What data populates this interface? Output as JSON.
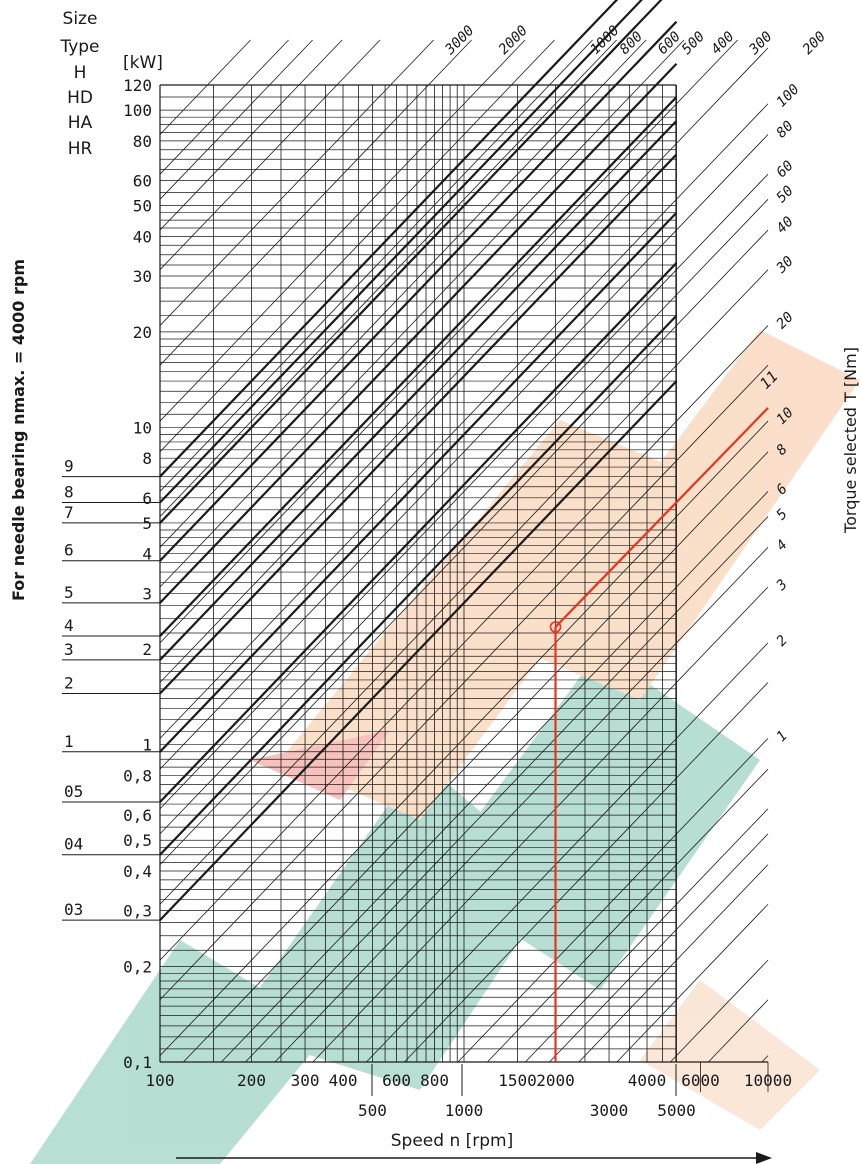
{
  "chart_data": {
    "type": "line",
    "x_scale": "log",
    "y_scale": "log",
    "xlabel": "Speed n [rpm]",
    "ylabel": "[kW]",
    "side_label": "For needle bearing nmax. = 4000 rpm",
    "right_label": "Torque selected T [Nm]",
    "header_labels": [
      "Size",
      "Type",
      "H",
      "HD",
      "HA",
      "HR"
    ],
    "xlim": [
      100,
      10000
    ],
    "ylim": [
      0.1,
      120
    ],
    "x_ticks_row1": [
      {
        "v": 100,
        "t": "100"
      },
      {
        "v": 200,
        "t": "200"
      },
      {
        "v": 300,
        "t": "300"
      },
      {
        "v": 400,
        "t": "400"
      },
      {
        "v": 600,
        "t": "600"
      },
      {
        "v": 800,
        "t": "800"
      },
      {
        "v": 1500,
        "t": "1500"
      },
      {
        "v": 2000,
        "t": "2000"
      },
      {
        "v": 4000,
        "t": "4000"
      },
      {
        "v": 6000,
        "t": "6000"
      },
      {
        "v": 10000,
        "t": "10000"
      }
    ],
    "x_ticks_row2": [
      {
        "v": 500,
        "t": "500"
      },
      {
        "v": 1000,
        "t": "1000"
      },
      {
        "v": 3000,
        "t": "3000"
      },
      {
        "v": 5000,
        "t": "5000"
      }
    ],
    "y_ticks": [
      {
        "v": 120,
        "t": "120"
      },
      {
        "v": 100,
        "t": "100"
      },
      {
        "v": 80,
        "t": "80"
      },
      {
        "v": 60,
        "t": "60"
      },
      {
        "v": 50,
        "t": "50"
      },
      {
        "v": 40,
        "t": "40"
      },
      {
        "v": 30,
        "t": "30"
      },
      {
        "v": 20,
        "t": "20"
      },
      {
        "v": 10,
        "t": "10"
      },
      {
        "v": 8,
        "t": "8"
      },
      {
        "v": 6,
        "t": "6"
      },
      {
        "v": 5,
        "t": "5"
      },
      {
        "v": 4,
        "t": "4"
      },
      {
        "v": 3,
        "t": "3"
      },
      {
        "v": 2,
        "t": "2"
      },
      {
        "v": 1,
        "t": "1"
      },
      {
        "v": 0.8,
        "t": "0,8"
      },
      {
        "v": 0.6,
        "t": "0,6"
      },
      {
        "v": 0.5,
        "t": "0,5"
      },
      {
        "v": 0.4,
        "t": "0,4"
      },
      {
        "v": 0.3,
        "t": "0,3"
      },
      {
        "v": 0.2,
        "t": "0,2"
      },
      {
        "v": 0.1,
        "t": "0,1"
      }
    ],
    "sizes": [
      {
        "label": "9",
        "y": 7
      },
      {
        "label": "8",
        "y": 5.8
      },
      {
        "label": "7",
        "y": 5
      },
      {
        "label": "6",
        "y": 3.8
      },
      {
        "label": "5",
        "y": 2.8
      },
      {
        "label": "4",
        "y": 2.2
      },
      {
        "label": "3",
        "y": 1.85
      },
      {
        "label": "2",
        "y": 1.45
      },
      {
        "label": "1",
        "y": 0.95
      },
      {
        "label": "05",
        "y": 0.66
      },
      {
        "label": "04",
        "y": 0.45
      },
      {
        "label": "03",
        "y": 0.28
      }
    ],
    "torque_lines_top": [
      {
        "T": 3000,
        "t": "3000"
      },
      {
        "T": 2000,
        "t": "2000"
      },
      {
        "T": 1000,
        "t": "1000"
      },
      {
        "T": 800,
        "t": "800"
      },
      {
        "T": 600,
        "t": "600"
      },
      {
        "T": 500,
        "t": "500"
      },
      {
        "T": 400,
        "t": "400"
      },
      {
        "T": 300,
        "t": "300"
      },
      {
        "T": 200,
        "t": "200"
      }
    ],
    "torque_lines_right": [
      {
        "T": 100,
        "t": "100"
      },
      {
        "T": 80,
        "t": "80"
      },
      {
        "T": 60,
        "t": "60"
      },
      {
        "T": 50,
        "t": "50"
      },
      {
        "T": 40,
        "t": "40"
      },
      {
        "T": 30,
        "t": "30"
      },
      {
        "T": 20,
        "t": "20"
      },
      {
        "T": 10,
        "t": "10"
      },
      {
        "T": 8,
        "t": "8"
      },
      {
        "T": 6,
        "t": "6"
      },
      {
        "T": 5,
        "t": "5"
      },
      {
        "T": 4,
        "t": "4"
      },
      {
        "T": 3,
        "t": "3"
      },
      {
        "T": 2,
        "t": "2"
      },
      {
        "T": 1,
        "t": "1"
      }
    ],
    "example": {
      "speed": 2000,
      "power": 2.35,
      "torque_selected": 11,
      "torque_label": "11",
      "color": "#e8331f"
    },
    "colors": {
      "grid": "#1a1a1a",
      "example": "#e8331f"
    }
  }
}
